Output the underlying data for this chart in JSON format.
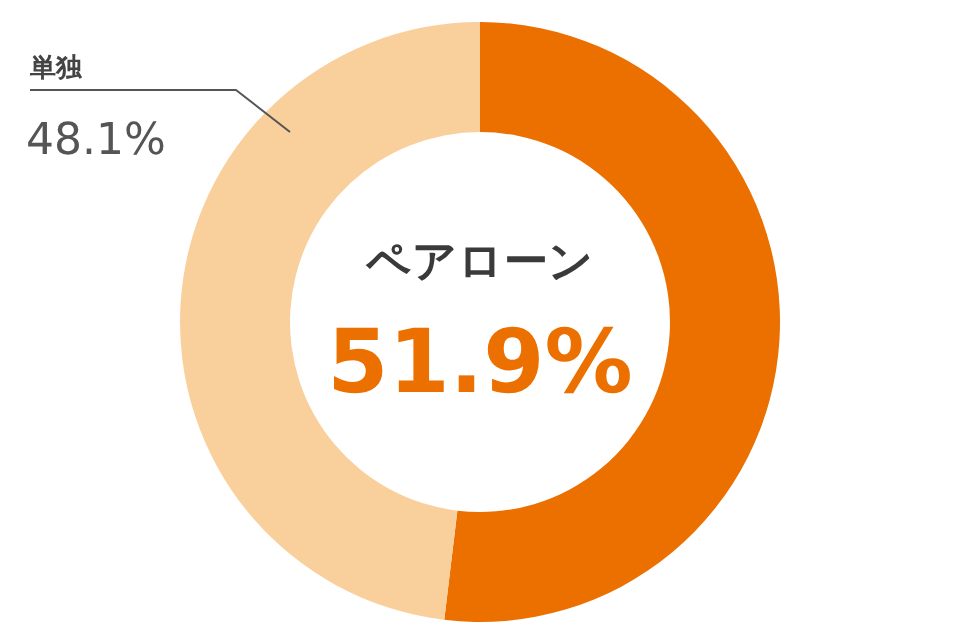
{
  "chart_data": {
    "type": "donut",
    "categories": [
      "ペアローン",
      "単独"
    ],
    "values": [
      51.9,
      48.1
    ],
    "colors": [
      "#ec7000",
      "#f9cf9c"
    ],
    "value_labels": [
      "51.9%",
      "48.1%"
    ]
  }
}
